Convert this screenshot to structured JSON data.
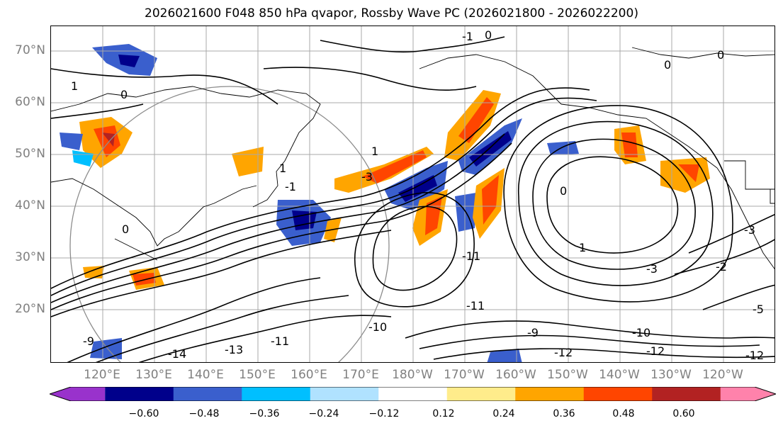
{
  "title": "2026021600 F048 850 hPa qvapor, Rossby Wave PC (2026021800 - 2026022200)",
  "lat_labels": [
    "70°N",
    "60°N",
    "50°N",
    "40°N",
    "30°N",
    "20°N"
  ],
  "lon_labels": [
    "120°E",
    "130°E",
    "140°E",
    "150°E",
    "160°E",
    "170°E",
    "180°W",
    "170°W",
    "160°W",
    "150°W",
    "140°W",
    "130°W",
    "120°W"
  ],
  "contour_labels": [
    "1",
    "0",
    "0",
    "0",
    "-1",
    "0",
    "1",
    "1",
    "-3",
    "-1",
    "0",
    "1",
    "-3",
    "-3",
    "-2",
    "-11",
    "-11",
    "-10",
    "-9",
    "-10",
    "-12",
    "-12",
    "-13",
    "-14",
    "-11",
    "-9",
    "-12",
    "-5",
    "0"
  ],
  "colorbar": {
    "colors": [
      "#9932cc",
      "#00008b",
      "#3a5fcd",
      "#00bfff",
      "#b0e2ff",
      "#ffffff",
      "#ffec8b",
      "#ffa500",
      "#ff4500",
      "#b22222",
      "#ff82ab"
    ],
    "tick_labels": [
      "−0.60",
      "−0.48",
      "−0.36",
      "−0.24",
      "−0.12",
      "0.12",
      "0.24",
      "0.36",
      "0.48",
      "0.60"
    ]
  },
  "map_colors": {
    "grid": "#a9a9a9",
    "coast": "#000000",
    "contour": "#000000",
    "range_ring": "#8c8c8c"
  }
}
